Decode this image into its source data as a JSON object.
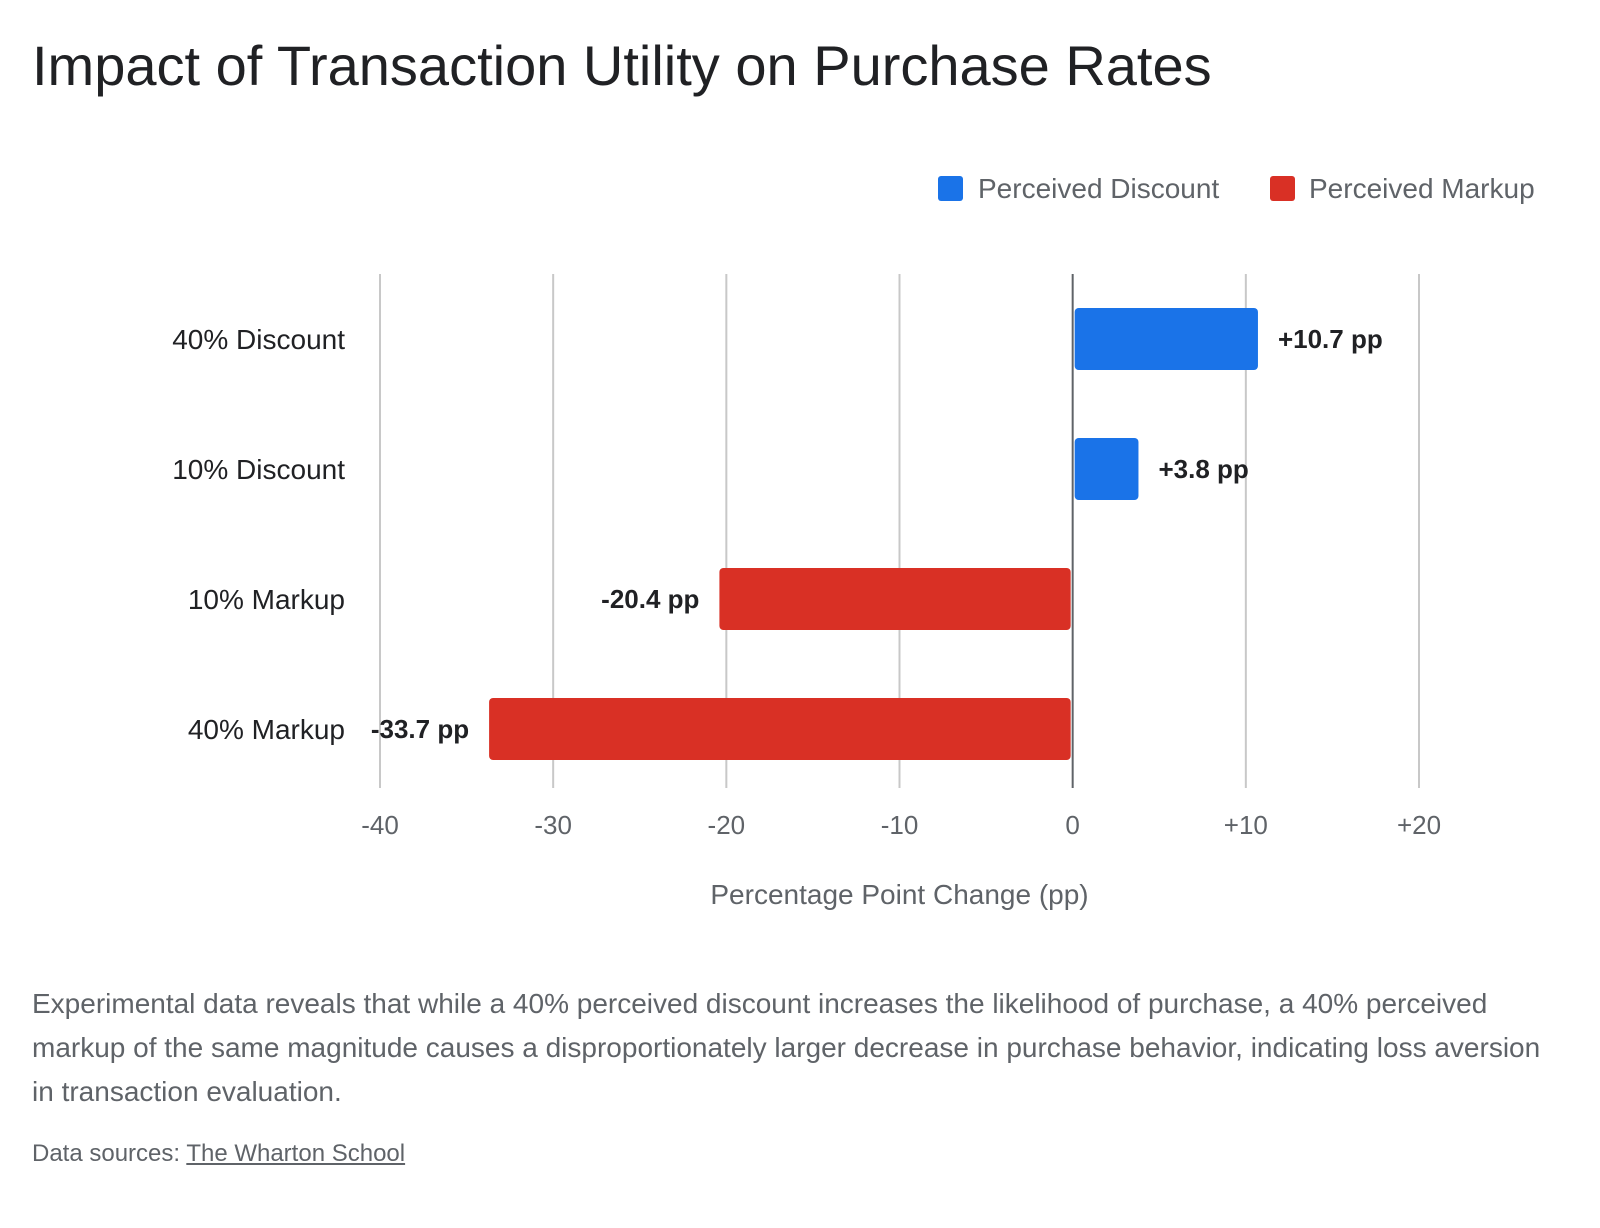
{
  "chart_data": {
    "type": "bar",
    "orientation": "horizontal",
    "title": "Impact of Transaction Utility on Purchase Rates",
    "xlabel": "Percentage Point Change (pp)",
    "ylabel": "",
    "xlim": [
      -40,
      20
    ],
    "grid": true,
    "legend_position": "top-right",
    "categories": [
      "40% Discount",
      "10% Discount",
      "10% Markup",
      "40% Markup"
    ],
    "values": [
      10.7,
      3.8,
      -20.4,
      -33.7
    ],
    "data_labels": [
      "+10.7 pp",
      "+3.8 pp",
      "-20.4 pp",
      "-33.7 pp"
    ],
    "bar_series": [
      "Perceived Discount",
      "Perceived Discount",
      "Perceived Markup",
      "Perceived Markup"
    ],
    "x_ticks": [
      {
        "value": -40,
        "label": "-40"
      },
      {
        "value": -30,
        "label": "-30"
      },
      {
        "value": -20,
        "label": "-20"
      },
      {
        "value": -10,
        "label": "-10"
      },
      {
        "value": 0,
        "label": "0"
      },
      {
        "value": 10,
        "label": "+10"
      },
      {
        "value": 20,
        "label": "+20"
      }
    ],
    "series": [
      {
        "name": "Perceived Discount",
        "color": "#1a73e8"
      },
      {
        "name": "Perceived Markup",
        "color": "#d93025"
      }
    ]
  },
  "caption": "Experimental data reveals that while a 40% perceived discount increases the likelihood of purchase, a 40% perceived markup of the same magnitude causes a disproportionately larger decrease in purchase behavior, indicating loss aversion in transaction evaluation.",
  "sources": {
    "prefix": "Data sources: ",
    "link_text": "The Wharton School"
  }
}
